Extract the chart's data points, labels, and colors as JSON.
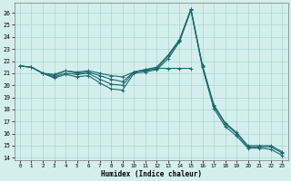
{
  "xlabel": "Humidex (Indice chaleur)",
  "bg_color": "#d4eeee",
  "grid_color": "#aed4d4",
  "line_color": "#1a6b6b",
  "xlim": [
    -0.5,
    23.5
  ],
  "ylim": [
    13.8,
    26.8
  ],
  "yticks": [
    14,
    15,
    16,
    17,
    18,
    19,
    20,
    21,
    22,
    23,
    24,
    25,
    26
  ],
  "xticks": [
    0,
    1,
    2,
    3,
    4,
    5,
    6,
    7,
    8,
    9,
    10,
    11,
    12,
    13,
    14,
    15,
    16,
    17,
    18,
    19,
    20,
    21,
    22,
    23
  ],
  "series1_x": [
    0,
    1,
    2,
    3,
    4,
    5,
    6,
    7,
    8,
    9,
    10,
    11,
    12,
    13,
    14,
    15,
    16,
    17,
    18,
    19,
    20,
    21,
    22,
    23
  ],
  "series1_y": [
    21.6,
    21.5,
    21.0,
    20.8,
    21.2,
    21.0,
    21.1,
    20.8,
    20.5,
    20.3,
    21.1,
    21.3,
    21.5,
    22.5,
    23.8,
    26.3,
    21.7,
    18.4,
    16.9,
    16.1,
    15.0,
    15.0,
    15.0,
    14.5
  ],
  "series2_x": [
    0,
    1,
    2,
    3,
    4,
    5,
    6,
    7,
    8,
    9,
    10,
    11,
    12,
    13,
    14,
    15
  ],
  "series2_y": [
    21.6,
    21.5,
    21.0,
    20.9,
    21.2,
    21.1,
    21.2,
    21.0,
    20.8,
    20.7,
    21.1,
    21.3,
    21.4,
    21.4,
    21.4,
    21.4
  ],
  "series3_x": [
    0,
    1,
    2,
    3,
    4,
    5,
    6,
    7,
    8,
    9,
    10,
    11,
    12,
    13,
    14,
    15,
    16,
    17,
    18,
    19,
    20,
    21,
    22,
    23
  ],
  "series3_y": [
    21.6,
    21.5,
    21.0,
    20.6,
    20.9,
    20.7,
    20.8,
    20.2,
    19.7,
    19.6,
    21.0,
    21.1,
    21.3,
    22.2,
    23.6,
    26.2,
    21.5,
    18.1,
    16.6,
    15.8,
    14.8,
    14.8,
    14.7,
    14.2
  ],
  "series4_x": [
    0,
    1,
    2,
    3,
    4,
    5,
    6,
    7,
    8,
    9,
    10,
    11,
    12,
    13,
    14,
    15,
    16,
    17,
    18,
    19,
    20,
    21,
    22,
    23
  ],
  "series4_y": [
    21.6,
    21.5,
    21.0,
    20.7,
    21.0,
    20.9,
    21.0,
    20.5,
    20.1,
    20.0,
    21.1,
    21.2,
    21.4,
    22.4,
    23.7,
    26.3,
    21.6,
    18.3,
    16.8,
    16.0,
    14.9,
    14.9,
    14.9,
    14.4
  ],
  "linewidth": 0.8,
  "markersize": 3
}
